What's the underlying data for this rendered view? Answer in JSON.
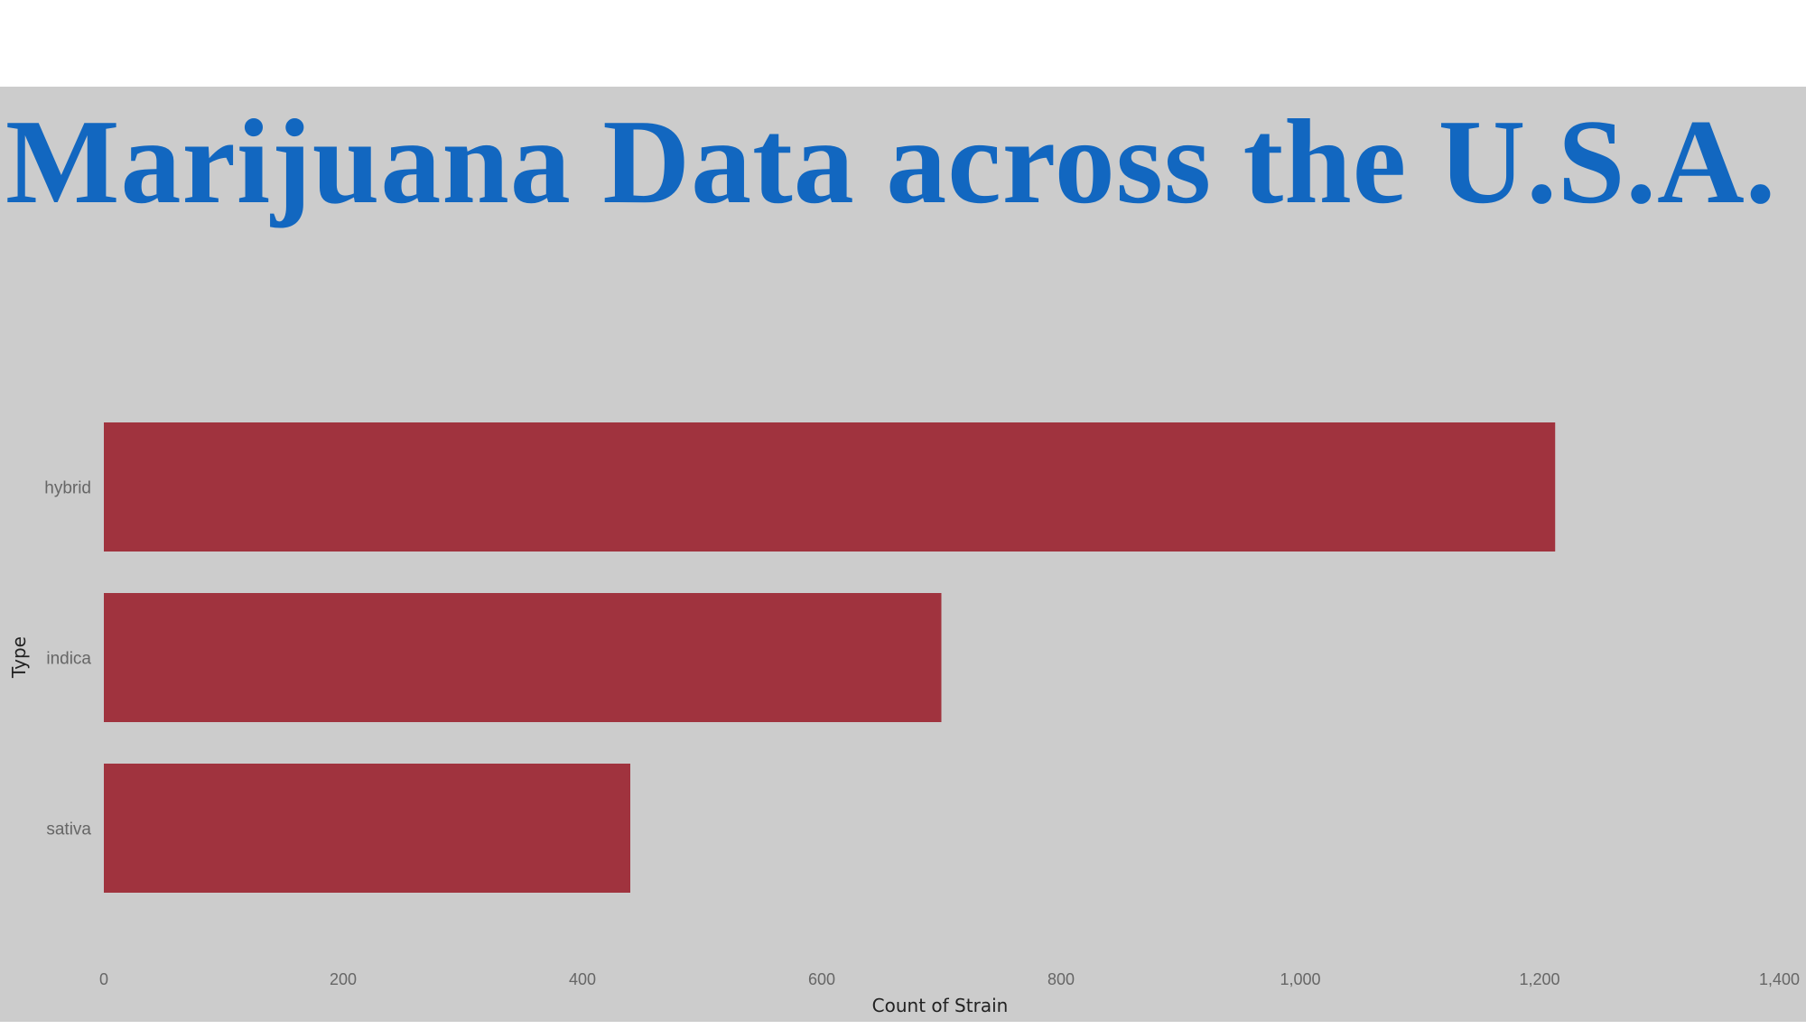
{
  "title": "Marijuana Data across the U.S.A.",
  "colors": {
    "title": "#1267c0",
    "bar": "#a0333e",
    "background": "#cccccc"
  },
  "chart_data": {
    "type": "bar",
    "orientation": "horizontal",
    "categories": [
      "hybrid",
      "indica",
      "sativa"
    ],
    "values": [
      1213,
      700,
      440
    ],
    "xlabel": "Count of Strain",
    "ylabel": "Type",
    "xlim": [
      0,
      1400
    ],
    "xticks": [
      0,
      200,
      400,
      600,
      800,
      1000,
      1200,
      1400
    ],
    "xtick_labels": [
      "0",
      "200",
      "400",
      "600",
      "800",
      "1,000",
      "1,200",
      "1,400"
    ],
    "grid": false,
    "legend": "none"
  }
}
